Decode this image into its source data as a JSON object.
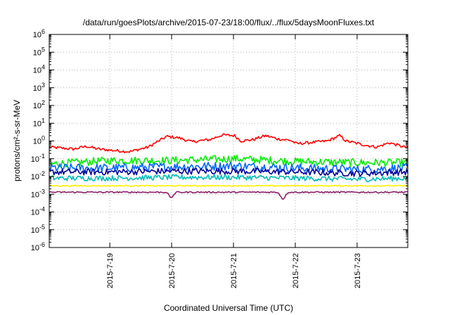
{
  "chart_data": {
    "type": "line",
    "title": "/data/run/goesPlots/archive/2015-07-23/18:00/flux/../flux/5daysMoonFluxes.txt",
    "xlabel": "Coordinated Universal Time (UTC)",
    "ylabel": "protons/cm²-s-sr-MeV",
    "yscale": "log",
    "ylim": [
      1e-06,
      1000000.0
    ],
    "xlim_days": [
      0,
      5.8
    ],
    "y_tick_exponents": [
      -6,
      -5,
      -4,
      -3,
      -2,
      -1,
      0,
      1,
      2,
      3,
      4,
      5,
      6
    ],
    "x_ticks": [
      {
        "label": "2015-7-19",
        "day": 0.98
      },
      {
        "label": "2015-7-20",
        "day": 1.98
      },
      {
        "label": "2015-7-21",
        "day": 2.98
      },
      {
        "label": "2015-7-22",
        "day": 3.98
      },
      {
        "label": "2015-7-23",
        "day": 4.98
      }
    ],
    "grid": true,
    "legend": "none",
    "series": [
      {
        "color": "#ff0000",
        "noise": 0.08,
        "anchors": [
          [
            0,
            0.45
          ],
          [
            0.4,
            0.35
          ],
          [
            0.6,
            0.5
          ],
          [
            0.8,
            0.35
          ],
          [
            1.0,
            0.3
          ],
          [
            1.3,
            0.25
          ],
          [
            1.6,
            0.45
          ],
          [
            1.9,
            1.8
          ],
          [
            2.1,
            1.5
          ],
          [
            2.3,
            0.9
          ],
          [
            2.6,
            1.2
          ],
          [
            2.8,
            2.2
          ],
          [
            3.0,
            2.0
          ],
          [
            3.1,
            1.0
          ],
          [
            3.3,
            1.2
          ],
          [
            3.5,
            2.0
          ],
          [
            3.7,
            1.3
          ],
          [
            3.9,
            1.1
          ],
          [
            4.0,
            0.7
          ],
          [
            4.2,
            0.8
          ],
          [
            4.5,
            1.0
          ],
          [
            4.7,
            2.0
          ],
          [
            4.8,
            1.0
          ],
          [
            5.1,
            0.6
          ],
          [
            5.3,
            0.45
          ],
          [
            5.5,
            0.8
          ],
          [
            5.8,
            0.4
          ]
        ]
      },
      {
        "color": "#00ee00",
        "noise": 0.22,
        "anchors": [
          [
            0,
            0.05
          ],
          [
            1.0,
            0.08
          ],
          [
            2.0,
            0.08
          ],
          [
            3.0,
            0.1
          ],
          [
            4.0,
            0.07
          ],
          [
            5.0,
            0.06
          ],
          [
            5.8,
            0.06
          ]
        ]
      },
      {
        "color": "#0066ff",
        "noise": 0.25,
        "anchors": [
          [
            0,
            0.03
          ],
          [
            1.0,
            0.03
          ],
          [
            2.0,
            0.035
          ],
          [
            3.0,
            0.04
          ],
          [
            4.0,
            0.03
          ],
          [
            5.0,
            0.025
          ],
          [
            5.8,
            0.03
          ]
        ]
      },
      {
        "color": "#000099",
        "noise": 0.18,
        "anchors": [
          [
            0,
            0.018
          ],
          [
            1.0,
            0.018
          ],
          [
            2.0,
            0.02
          ],
          [
            3.0,
            0.02
          ],
          [
            4.0,
            0.018
          ],
          [
            5.0,
            0.015
          ],
          [
            5.8,
            0.018
          ]
        ]
      },
      {
        "color": "#00bbbb",
        "noise": 0.15,
        "anchors": [
          [
            0,
            0.008
          ],
          [
            1.0,
            0.008
          ],
          [
            2.0,
            0.009
          ],
          [
            3.0,
            0.009
          ],
          [
            4.0,
            0.008
          ],
          [
            5.0,
            0.007
          ],
          [
            5.8,
            0.008
          ]
        ]
      },
      {
        "color": "#ffee00",
        "noise": 0.03,
        "anchors": [
          [
            0,
            0.003
          ],
          [
            5.8,
            0.003
          ]
        ]
      },
      {
        "color": "#882266",
        "noise": 0.04,
        "anchors": [
          [
            0,
            0.0013
          ],
          [
            1.9,
            0.0013
          ],
          [
            1.97,
            0.0006
          ],
          [
            2.05,
            0.0013
          ],
          [
            3.7,
            0.0013
          ],
          [
            3.78,
            0.0005
          ],
          [
            3.86,
            0.0013
          ],
          [
            5.8,
            0.0013
          ]
        ]
      }
    ]
  }
}
